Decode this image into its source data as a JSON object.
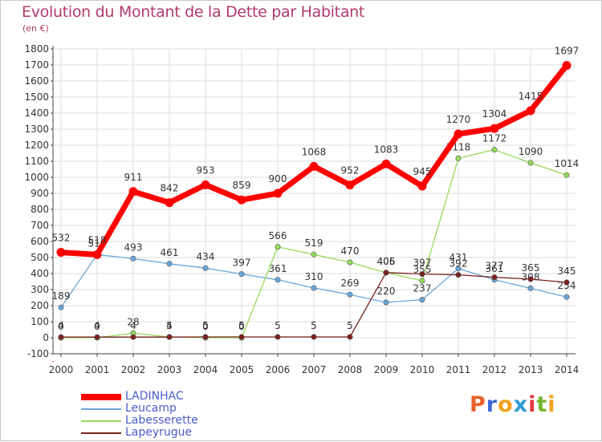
{
  "header": {
    "title": "Evolution du Montant de la Dette par Habitant",
    "subtitle": "(en €)"
  },
  "logo": {
    "letters": [
      "P",
      "r",
      "o",
      "x",
      "i",
      "t",
      "i"
    ],
    "colors": [
      "#e8622c",
      "#3d6bd6",
      "#f2a21d",
      "#2f9ad8",
      "#e23a3a",
      "#73b82e",
      "#f2a21d"
    ]
  },
  "colors": {
    "LADINHAC": "#ff0000",
    "Leucamp": "#6aa6d8",
    "Labesserette": "#93dc59",
    "Lapeyrugue": "#7a2020",
    "axis": "#444444",
    "grid": "#dddddd",
    "title": "#b03a6a",
    "legend_text": "#4a5cc8"
  },
  "chart_data": {
    "type": "line",
    "title": "Evolution du Montant de la Dette par Habitant",
    "subtitle": "(en €)",
    "x": [
      "2000",
      "2001",
      "2002",
      "2003",
      "2004",
      "2005",
      "2006",
      "2007",
      "2008",
      "2009",
      "2010",
      "2011",
      "2012",
      "2013",
      "2014"
    ],
    "ylim": [
      -100,
      1800
    ],
    "yticks": [
      "-100",
      "0",
      "100",
      "200",
      "300",
      "400",
      "500",
      "600",
      "700",
      "800",
      "900",
      "1000",
      "1100",
      "1200",
      "1300",
      "1400",
      "1500",
      "1600",
      "1700",
      "1800"
    ],
    "grid": true,
    "legend_position": "bottom-left",
    "series": [
      {
        "name": "LADINHAC",
        "values": [
          532,
          518,
          911,
          842,
          953,
          859,
          900,
          1068,
          952,
          1083,
          945,
          1270,
          1304,
          1415,
          1697
        ],
        "labels": [
          "532",
          "518",
          "911",
          "842",
          "953",
          "859",
          "900",
          "1068",
          "952",
          "1083",
          "945",
          "1270",
          "1304",
          "1415",
          "1697"
        ]
      },
      {
        "name": "Leucamp",
        "values": [
          189,
          518,
          493,
          461,
          434,
          397,
          361,
          310,
          269,
          220,
          237,
          431,
          361,
          308,
          254
        ],
        "labels": [
          "189",
          "518",
          "493",
          "461",
          "434",
          "397",
          "361",
          "310",
          "269",
          "220",
          "237",
          "431",
          "361",
          "308",
          "254"
        ]
      },
      {
        "name": "Labesserette",
        "values": [
          0,
          0,
          28,
          5,
          0,
          0,
          566,
          519,
          470,
          405,
          355,
          1118,
          1172,
          1090,
          1014
        ],
        "labels": [
          "0",
          "0",
          "28",
          "5",
          "0",
          "0",
          "566",
          "519",
          "470",
          "405",
          "355",
          "1118",
          "1172",
          "1090",
          "1014"
        ]
      },
      {
        "name": "Lapeyrugue",
        "values": [
          4,
          4,
          4,
          4,
          5,
          5,
          5,
          5,
          5,
          406,
          397,
          392,
          377,
          365,
          345
        ],
        "labels": [
          "4",
          "4",
          "4",
          "4",
          "5",
          "5",
          "5",
          "5",
          "5",
          "406",
          "397",
          "392",
          "377",
          "365",
          "345"
        ]
      }
    ]
  }
}
